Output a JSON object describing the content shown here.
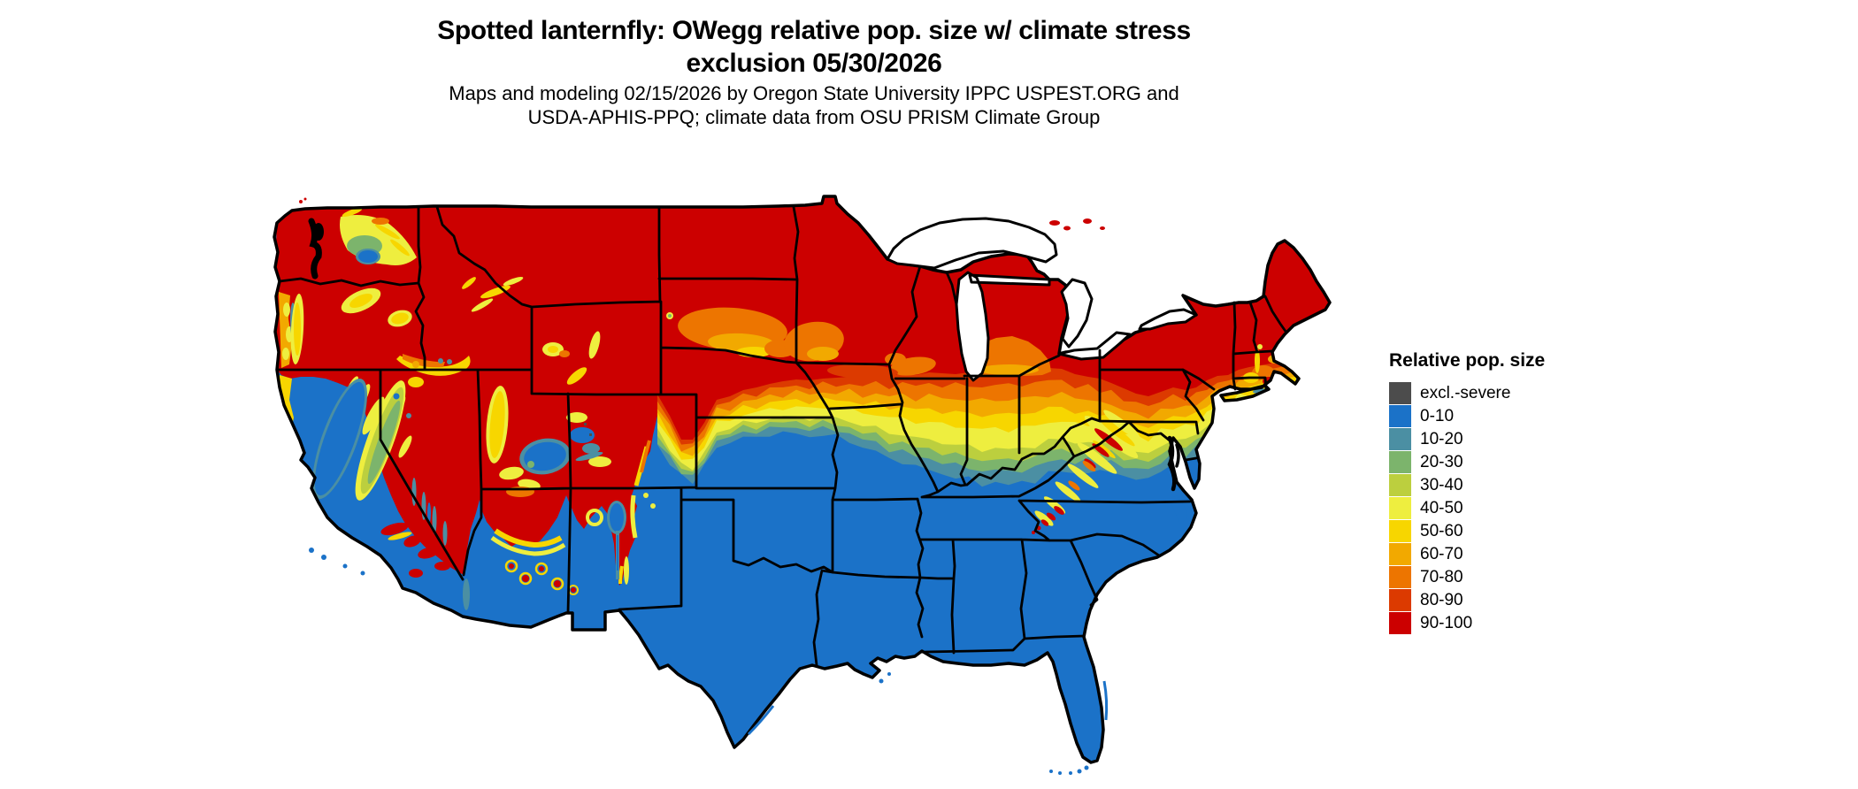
{
  "title": {
    "line1": "Spotted lanternfly: OWegg relative pop. size w/ climate stress",
    "line2": "exclusion 05/30/2026"
  },
  "subtitle": {
    "line1": "Maps and modeling 02/15/2026 by Oregon State University IPPC USPEST.ORG and",
    "line2": "USDA-APHIS-PPQ; climate data from OSU PRISM Climate Group"
  },
  "legend": {
    "title": "Relative pop. size",
    "items": [
      {
        "label": "excl.-severe",
        "color": "#4c4c4c"
      },
      {
        "label": "0-10",
        "color": "#1b72c8"
      },
      {
        "label": "10-20",
        "color": "#4b8fa3"
      },
      {
        "label": "20-30",
        "color": "#7cb46c"
      },
      {
        "label": "30-40",
        "color": "#bccf3e"
      },
      {
        "label": "40-50",
        "color": "#eeee3f"
      },
      {
        "label": "50-60",
        "color": "#f7d600"
      },
      {
        "label": "60-70",
        "color": "#f2a900"
      },
      {
        "label": "70-80",
        "color": "#ed7500"
      },
      {
        "label": "80-90",
        "color": "#dc3a00"
      },
      {
        "label": "90-100",
        "color": "#cc0000"
      }
    ]
  },
  "map": {
    "region": "Continental United States",
    "border_color": "#000000",
    "water_color": "#ffffff"
  }
}
